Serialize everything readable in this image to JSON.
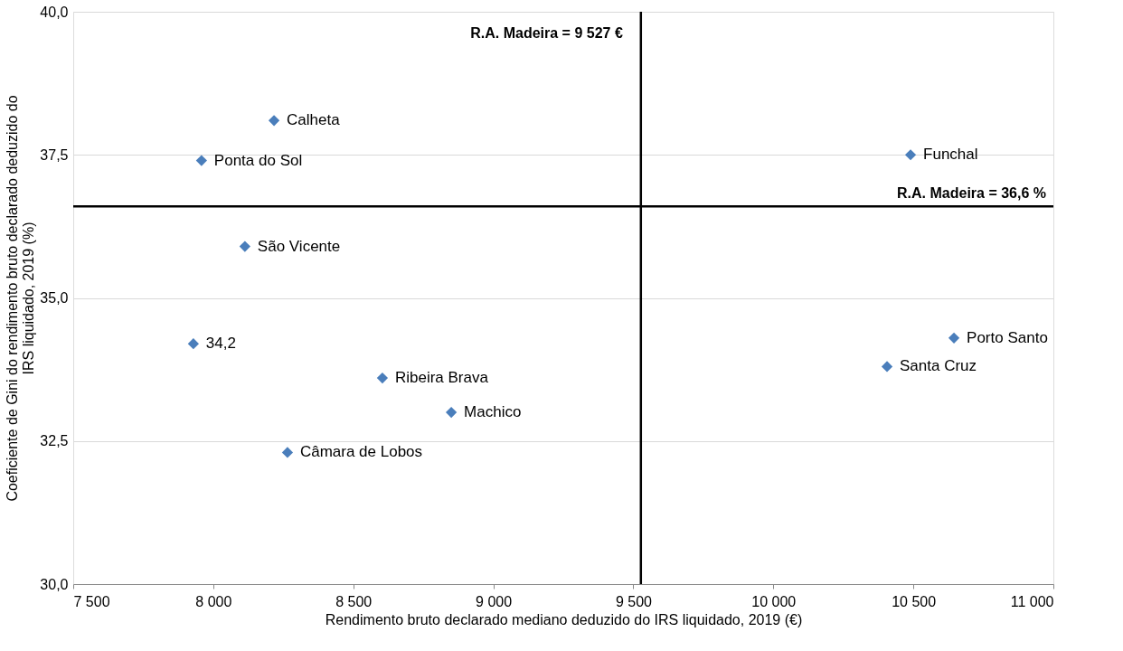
{
  "chart_data": {
    "type": "scatter",
    "xlabel": "Rendimento bruto declarado mediano deduzido do IRS liquidado, 2019 (€)",
    "ylabel": "Coeficiente de Gini do rendimento bruto declarado deduzido do IRS liquidado, 2019 (%)",
    "series": [
      {
        "color": "#4a7ebb",
        "x": [
          8217,
          7958,
          8113,
          7929,
          8604,
          8850,
          8265,
          10490,
          10645,
          10406
        ],
        "values": [
          38.1,
          37.4,
          35.9,
          34.2,
          33.6,
          33.0,
          32.3,
          37.5,
          34.3,
          33.8
        ],
        "value_labels": [
          "Calheta",
          "Ponta do Sol",
          "São Vicente",
          "34,2",
          "Ribeira Brava",
          "Machico",
          "Câmara de Lobos",
          "Funchal",
          "Porto Santo",
          "Santa Cruz"
        ]
      }
    ],
    "xlim": [
      7500,
      11000
    ],
    "xticks": [
      {
        "value": 7500,
        "label": "7 500"
      },
      {
        "value": 8000,
        "label": "8 000"
      },
      {
        "value": 8500,
        "label": "8 500"
      },
      {
        "value": 9000,
        "label": "9 000"
      },
      {
        "value": 9500,
        "label": "9 500"
      },
      {
        "value": 10000,
        "label": "10 000"
      },
      {
        "value": 10500,
        "label": "10 500"
      },
      {
        "value": 11000,
        "label": "11 000"
      }
    ],
    "ylim": [
      30,
      40
    ],
    "yticks": [
      {
        "value": 30,
        "label": "30,0"
      },
      {
        "value": 32.5,
        "label": "32,5"
      },
      {
        "value": 35,
        "label": "35,0"
      },
      {
        "value": 37.5,
        "label": "37,5"
      },
      {
        "value": 40,
        "label": "40,0"
      }
    ],
    "ref_lines": [
      {
        "axis": "x",
        "value": 9527,
        "label": "R.A. Madeira = 9 527 €",
        "color": "#000000"
      },
      {
        "axis": "y",
        "value": 36.6,
        "label": "R.A. Madeira = 36,6 %",
        "color": "#000000"
      }
    ],
    "grid": "y",
    "marker": "diamond"
  }
}
